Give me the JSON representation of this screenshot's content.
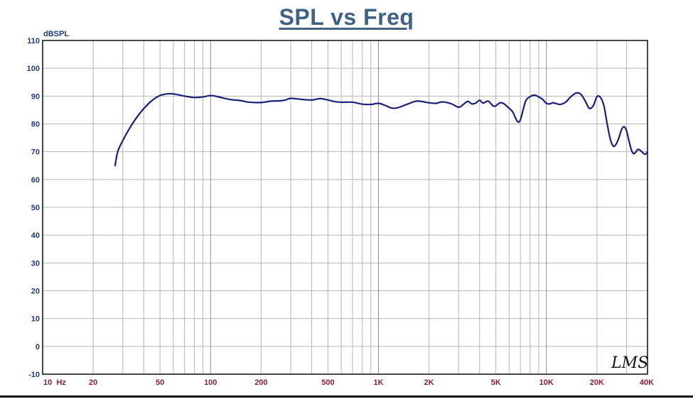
{
  "chart_data": {
    "type": "line",
    "title": "SPL vs Freq",
    "ylabel": "dBSPL",
    "xlabel": "",
    "x_scale": "log",
    "xlim": [
      10,
      40000
    ],
    "ylim": [
      -10,
      110
    ],
    "grid": true,
    "y_ticks": [
      -10,
      0,
      10,
      20,
      30,
      40,
      50,
      60,
      70,
      80,
      90,
      100,
      110
    ],
    "x_ticks": [
      {
        "value": 10,
        "label": "10  Hz"
      },
      {
        "value": 20,
        "label": "20"
      },
      {
        "value": 50,
        "label": "50"
      },
      {
        "value": 100,
        "label": "100"
      },
      {
        "value": 200,
        "label": "200"
      },
      {
        "value": 500,
        "label": "500"
      },
      {
        "value": 1000,
        "label": "1K"
      },
      {
        "value": 2000,
        "label": "2K"
      },
      {
        "value": 5000,
        "label": "5K"
      },
      {
        "value": 10000,
        "label": "10K"
      },
      {
        "value": 20000,
        "label": "20K"
      },
      {
        "value": 40000,
        "label": "40K"
      }
    ],
    "series": [
      {
        "color": "#1a1f7a",
        "x": [
          27,
          28,
          30,
          33,
          36,
          40,
          45,
          50,
          55,
          60,
          70,
          80,
          90,
          100,
          110,
          130,
          150,
          170,
          200,
          230,
          260,
          280,
          300,
          350,
          400,
          450,
          500,
          550,
          600,
          700,
          800,
          900,
          1000,
          1100,
          1200,
          1300,
          1500,
          1700,
          2000,
          2200,
          2400,
          2700,
          3000,
          3200,
          3400,
          3600,
          3800,
          4000,
          4200,
          4500,
          4800,
          5000,
          5300,
          5600,
          6000,
          6300,
          6700,
          7000,
          7500,
          8000,
          8500,
          9000,
          9500,
          10000,
          10500,
          11000,
          12000,
          13000,
          14000,
          15000,
          16000,
          17000,
          18000,
          19000,
          20000,
          21000,
          22000,
          23000,
          24000,
          25000,
          26000,
          27000,
          28000,
          29000,
          30000,
          31000,
          32000,
          33000,
          34000,
          35000,
          36000,
          37000,
          38000,
          39000,
          40000
        ],
        "y": [
          65,
          70,
          74,
          78.5,
          82,
          85.5,
          88.5,
          90.2,
          90.8,
          90.8,
          90,
          89.5,
          89.7,
          90.2,
          89.8,
          88.8,
          88.4,
          87.8,
          87.7,
          88.2,
          88.3,
          88.6,
          89.2,
          88.8,
          88.6,
          89.1,
          88.6,
          88,
          87.8,
          87.8,
          87.1,
          87,
          87.4,
          86.6,
          85.7,
          85.8,
          87.2,
          88.2,
          87.6,
          87.4,
          87.9,
          87.3,
          86,
          87,
          88.1,
          87.2,
          87.5,
          88.5,
          87.5,
          88.2,
          86.5,
          86.5,
          87.6,
          87.2,
          85.6,
          84.3,
          81,
          81.5,
          88,
          89.8,
          90.3,
          89.7,
          88.8,
          87.4,
          87.2,
          87.6,
          87,
          87.8,
          89.8,
          91.1,
          90.7,
          88.3,
          85.6,
          86.5,
          89.8,
          89.5,
          86.5,
          80,
          74.6,
          72,
          72.7,
          75,
          77.9,
          79,
          77.5,
          74,
          70.8,
          69.3,
          69.8,
          70.8,
          70.6,
          70,
          69.3,
          69.1,
          70
        ]
      }
    ]
  },
  "signature": "LMS"
}
